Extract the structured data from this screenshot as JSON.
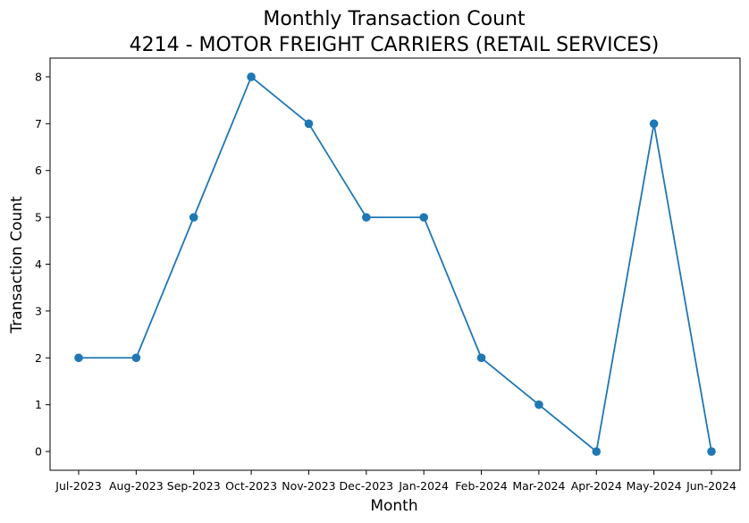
{
  "chart_data": {
    "type": "line",
    "title": "Monthly Transaction Count",
    "subtitle": "4214 - MOTOR FREIGHT CARRIERS (RETAIL SERVICES)",
    "xlabel": "Month",
    "ylabel": "Transaction Count",
    "categories": [
      "Jul-2023",
      "Aug-2023",
      "Sep-2023",
      "Oct-2023",
      "Nov-2023",
      "Dec-2023",
      "Jan-2024",
      "Feb-2024",
      "Mar-2024",
      "Apr-2024",
      "May-2024",
      "Jun-2024"
    ],
    "series": [
      {
        "values": [
          2,
          2,
          5,
          8,
          7,
          5,
          5,
          2,
          1,
          0,
          7,
          0
        ]
      }
    ],
    "yticks": [
      0,
      1,
      2,
      3,
      4,
      5,
      6,
      7,
      8
    ],
    "ylim": [
      -0.4,
      8.4
    ],
    "grid": false,
    "marker": "circle",
    "line_color": "#1f77b4"
  }
}
